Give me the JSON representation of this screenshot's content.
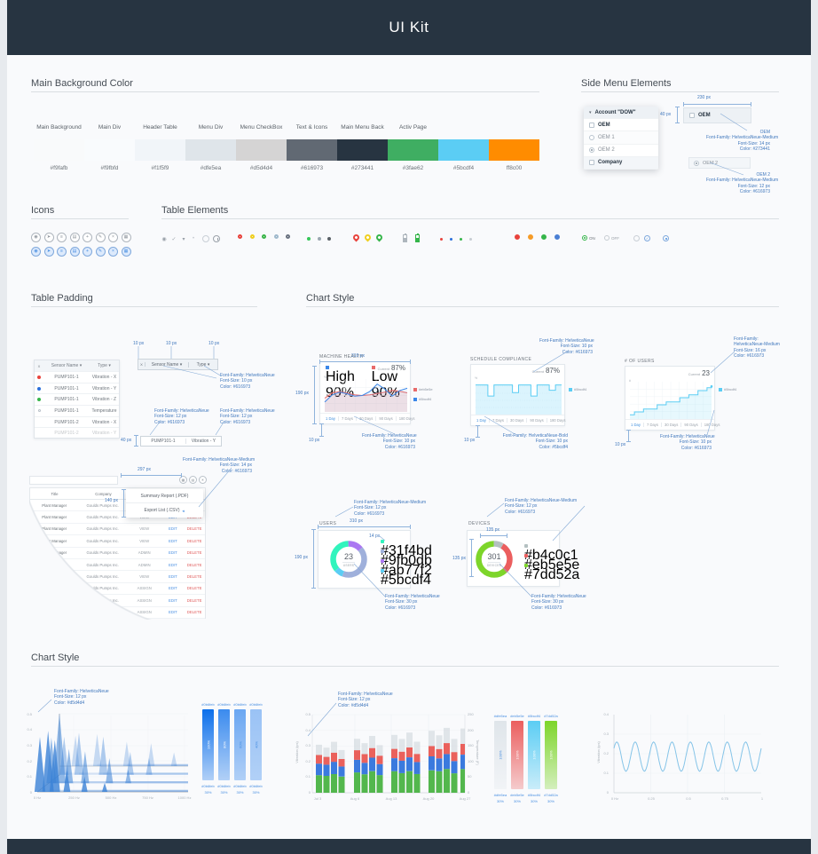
{
  "header": {
    "title": "UI Kit"
  },
  "sections": {
    "main_background_color": "Main Background Color",
    "side_menu_elements": "Side Menu Elements",
    "icons": "Icons",
    "table_elements": "Table Elements",
    "table_padding": "Table Padding",
    "chart_style": "Chart Style",
    "chart_style_2": "Chart Style"
  },
  "palette": {
    "labels": [
      "Main Background",
      "Main Div",
      "Header Table",
      "Menu Div",
      "Menu CheckBox",
      "Text & Icons",
      "Main Menu Back",
      "Activ Page"
    ],
    "swatches": [
      {
        "hex": "#f9fafb",
        "color": "#f9fafb"
      },
      {
        "hex": "#f9fbfd",
        "color": "#f9fbfd"
      },
      {
        "hex": "#f1f5f9",
        "color": "#f1f5f9"
      },
      {
        "hex": "#dfe5ea",
        "color": "#dfe5ea"
      },
      {
        "hex": "#d5d4d4",
        "color": "#d5d4d4"
      },
      {
        "hex": "#616973",
        "color": "#616973"
      },
      {
        "hex": "#273441",
        "color": "#273441"
      },
      {
        "hex": "#3fae62",
        "color": "#3fae62"
      },
      {
        "hex": "#5bcdf4",
        "color": "#5bcdf4"
      },
      {
        "hex": "ff8c00",
        "color": "#ff8c00"
      }
    ]
  },
  "side_menu": {
    "items": [
      {
        "label": "Account \"DOW\"",
        "control": "caret",
        "strong": true,
        "bg": "#edf1f5"
      },
      {
        "label": "OEM",
        "control": "checkbox",
        "strong": true,
        "bg": "#ffffff"
      },
      {
        "label": "OEM 1",
        "control": "circle",
        "strong": false,
        "bg": "#fbfcfd"
      },
      {
        "label": "OEM 2",
        "control": "radio",
        "strong": false,
        "bg": "#ffffff"
      },
      {
        "label": "Company",
        "control": "checkbox",
        "strong": true,
        "bg": "#f3f6f9"
      }
    ],
    "spec_item_1": {
      "label": "OEM",
      "control": "checkbox"
    },
    "spec_item_2": {
      "label": "OEM 2",
      "control": "radio"
    }
  },
  "icons_grid": {
    "names": [
      "pin",
      "send",
      "list",
      "archive",
      "plus",
      "edit",
      "close",
      "grid"
    ],
    "glyphs": [
      "◉",
      "➤",
      "≡",
      "▤",
      "+",
      "✎",
      "×",
      "▦"
    ]
  },
  "table_elements": {
    "on_label": "ON",
    "off_label": "OFF",
    "glyphs": [
      {
        "name": "eye-icon",
        "g": "◉",
        "c": "#9aa1a9"
      },
      {
        "name": "check-icon",
        "g": "✓",
        "c": "#9aa1a9"
      },
      {
        "name": "caret-down-icon",
        "g": "▾",
        "c": "#9aa1a9"
      },
      {
        "name": "dot-icon",
        "g": "•",
        "c": "#c2c8ce"
      }
    ],
    "rings": [
      "#e8423c",
      "#f0cf1f",
      "#3bb54a",
      "#9fb9cc",
      "#6a7280"
    ],
    "dots": [
      "#35c759",
      "#9aa7b0",
      "#596066"
    ],
    "pins": [
      "#e8423c",
      "#f0cf1f",
      "#35b54a"
    ],
    "batteries": [
      "#aeb6bd",
      "#35b54a"
    ],
    "tiny_dots": [
      "#e8423c",
      "#2a6fdb",
      "#35b54a",
      "#c6ccd2"
    ],
    "donuts": [
      "#e8423c",
      "#f59b27",
      "#35b54a",
      "#4a7fd4"
    ]
  },
  "sensor_table": {
    "headers": [
      "X",
      "Sensor Name",
      "Type"
    ],
    "rows": [
      {
        "dot": "#e8423c",
        "name": "PUMP101-1",
        "type": "Vibration - X"
      },
      {
        "dot": "#2a6fdb",
        "name": "PUMP101-1",
        "type": "Vibration - Y"
      },
      {
        "dot": "#35b54a",
        "name": "PUMP101-1",
        "type": "Vibration - Z"
      },
      {
        "dot": "ring",
        "name": "PUMP101-1",
        "type": "Temperature"
      },
      {
        "dot": "",
        "name": "PUMP101-2",
        "type": "Vibration - X"
      },
      {
        "dot": "",
        "name": "PUMP101-2",
        "type": "Vibration - Y"
      }
    ]
  },
  "spec_row_cells": [
    "PUMP101-1",
    "Vibration - Y"
  ],
  "users_table": {
    "headers": [
      "Title",
      "Company",
      "User Rights"
    ],
    "title": "Plant Manager",
    "company": "Goulds Pumps Inc.",
    "rights": [
      "VIEW",
      "VIEW",
      "VIEW",
      "VIEW",
      "ADMIN",
      "ADMIN",
      "VIEW",
      "ASSIGN",
      "ASSIGN",
      "ASSIGN"
    ],
    "edit": "EDIT",
    "delete": "DELETE"
  },
  "export_menu": {
    "items": [
      "Summary Report (.PDF)",
      "Export List (.CSV)"
    ]
  },
  "toolbar_icons": [
    {
      "name": "grid-icon",
      "g": "▦"
    },
    {
      "name": "report-icon",
      "g": "▤"
    },
    {
      "name": "settings-icon",
      "g": "✳"
    }
  ],
  "dim_labels": {
    "d230": "230 px",
    "d40a": "40 px",
    "d40b": "40 px",
    "d297": "297 px",
    "d140": "140 px",
    "d310": "310 px",
    "d190": "190 px",
    "d14": "14 px",
    "d135": "135 px",
    "d10": "10 px"
  },
  "annotations": {
    "oem": [
      "OEM",
      "Font-Family: HelveticaNeue-Medium",
      "Font-Size: 14 px",
      "Color: #273441"
    ],
    "oem2": [
      "OEM 2",
      "Font-Family: HelveticaNeue-Medium",
      "Font-Size: 12 px",
      "Color: #616973"
    ],
    "thead": [
      "Font-Family: HelveticaNeue",
      "Font-Size: 10 px",
      "Color: #616973"
    ],
    "cell": [
      "Font-Family: HelveticaNeue",
      "Font-Size: 12 px",
      "Color: #616973"
    ],
    "export": [
      "Font-Family: HelveticaNeue-Medium",
      "Font-Size: 14 px",
      "Color: #616973"
    ],
    "small10": [
      "Font-Family: HelveticaNeue",
      "Font-Size: 10 px",
      "Color: #616973"
    ],
    "bold10": [
      "Font-Family: HelveticaNeue-Bold",
      "Font-Size: 10 px",
      "Color: #5bcdf4"
    ],
    "medium16": [
      "Font-Family:",
      "HelveticaNeue-Medium",
      "Font-Size: 16 px",
      "Color: #616973"
    ],
    "medium12": [
      "Font-Family: HelveticaNeue-Medium",
      "Font-Size: 12 px",
      "Color: #616973"
    ],
    "num30": [
      "Font-Family: HelveticaNeue",
      "Font-Size: 30 px",
      "Color: #616973"
    ],
    "axis12": [
      "Font-Family: HelveticaNeue",
      "Font-Size: 12 px",
      "Color: #d5d4d4"
    ]
  },
  "chart_data": [
    {
      "id": "machine_health",
      "type": "line",
      "title": "MACHINE HEALTH",
      "unit": "%",
      "legend": [
        {
          "label": "High 90%",
          "color": "#3b87e8"
        },
        {
          "label": "Low 90%",
          "color": "#e86a6a"
        }
      ],
      "current_label": "Current",
      "current_value": "87%",
      "tabs": [
        "1 Day",
        "7 Days",
        "30 Days",
        "90 Days",
        "180 Days"
      ],
      "active_tab": "1 Day",
      "side_legend": [
        {
          "label": "#eb5e5e",
          "color": "#e86a6a"
        },
        {
          "label": "#5bcdf4",
          "color": "#3b87e8"
        }
      ],
      "series": [
        {
          "name": "High",
          "color": "#3b87e8",
          "values": [
            30,
            52,
            60,
            55,
            48,
            50,
            62,
            85,
            70,
            48,
            65,
            72
          ]
        },
        {
          "name": "Low",
          "color": "#e86a6a",
          "values": [
            42,
            58,
            62,
            57,
            52,
            50,
            52,
            56,
            60,
            66,
            63,
            58
          ]
        }
      ],
      "ylim": [
        0,
        100
      ]
    },
    {
      "id": "schedule_compliance",
      "type": "step-area",
      "title": "SCHEDULE COMPLIANCE",
      "unit": "%",
      "current_label": "Current",
      "current_value": "87%",
      "color": "#5bcdf4",
      "tabs": [
        "1 Day",
        "7 Days",
        "30 Days",
        "90 Days",
        "180 Days"
      ],
      "active_tab": "1 Day",
      "side_legend": [
        {
          "label": "#5bcdf4",
          "color": "#5bcdf4"
        }
      ],
      "values": [
        88,
        88,
        55,
        88,
        88,
        88,
        65,
        88,
        88,
        55,
        88,
        88,
        72,
        88,
        88
      ],
      "ylim": [
        0,
        100
      ]
    },
    {
      "id": "num_users",
      "type": "step-line",
      "title": "# OF USERS",
      "unit": "#",
      "current_label": "Current",
      "current_value": "23",
      "color": "#5bcdf4",
      "tabs": [
        "1 Day",
        "7 Days",
        "30 Days",
        "90 Days",
        "180 Days"
      ],
      "active_tab": "1 Day",
      "side_legend": [
        {
          "label": "#5bcdf4",
          "color": "#5bcdf4"
        }
      ],
      "values": [
        3,
        5,
        5,
        7,
        7,
        7,
        10,
        10,
        12,
        12,
        12,
        15,
        15,
        17,
        17,
        20,
        20,
        22,
        23
      ],
      "ylim": [
        0,
        25
      ]
    },
    {
      "id": "users_donut",
      "type": "donut",
      "title": "USERS",
      "center_value": "23",
      "center_label": "USERS",
      "segments": [
        {
          "hex": "#ab77f2",
          "value": 14
        },
        {
          "hex": "#9fb0db",
          "value": 42
        },
        {
          "hex": "#5bcdf4",
          "value": 8
        },
        {
          "hex": "#31f4bd",
          "value": 36
        }
      ],
      "legend": [
        "#31f4bd",
        "#9fb0db",
        "#ab77f2",
        "#5bcdf4"
      ]
    },
    {
      "id": "devices_donut",
      "type": "donut",
      "title": "DEVICES",
      "center_value": "301",
      "center_label": "DEVICES",
      "segments": [
        {
          "hex": "#b4c0c1",
          "value": 9
        },
        {
          "hex": "#eb5e5e",
          "value": 29
        },
        {
          "hex": "#7dd52a",
          "value": 62
        }
      ],
      "legend": [
        "#b4c0c1",
        "#eb5e5e",
        "#7dd52a"
      ]
    },
    {
      "id": "spectrum",
      "type": "waterfall",
      "color": "#3b82d6",
      "ylabels": [
        "0.5",
        "0.4",
        "0.3",
        "0.2",
        "0.1",
        "0"
      ],
      "xlabels": [
        "0 Hz",
        "250 Hz",
        "500 Hz",
        "750 Hz",
        "1000 Hz"
      ],
      "rows": [
        [
          [
            0.02,
            0.72
          ],
          [
            0.08,
            0.8
          ],
          [
            0.13,
            0.68
          ],
          [
            0.22,
            0.28
          ],
          [
            0.35,
            0.2
          ],
          [
            0.5,
            0.12
          ]
        ],
        [
          [
            0.05,
            0.6
          ],
          [
            0.11,
            0.92
          ],
          [
            0.18,
            0.45
          ],
          [
            0.3,
            0.42
          ],
          [
            0.48,
            0.33
          ],
          [
            0.62,
            0.18
          ]
        ],
        [
          [
            0.09,
            0.5
          ],
          [
            0.2,
            0.55
          ],
          [
            0.38,
            0.5
          ],
          [
            0.58,
            0.3
          ],
          [
            0.72,
            0.22
          ]
        ],
        [
          [
            0.12,
            0.4
          ],
          [
            0.28,
            0.42
          ],
          [
            0.5,
            0.32
          ],
          [
            0.68,
            0.3
          ],
          [
            0.85,
            0.18
          ]
        ]
      ]
    },
    {
      "id": "opacity_bars_blue",
      "type": "gradient-bars",
      "bars": [
        {
          "hex": "#0b6feb",
          "label": "100%"
        },
        {
          "hex": "#0b6feb",
          "label": "80%"
        },
        {
          "hex": "#0b6feb",
          "label": "60%"
        },
        {
          "hex": "#0b6feb",
          "label": "40%"
        }
      ],
      "opacities": [
        1,
        0.8,
        0.6,
        0.4
      ],
      "bottom_pct": "30%"
    },
    {
      "id": "vibration_temp",
      "type": "stacked-bars",
      "ylabel_left": "Vibration (ips)",
      "ylabel_right": "Temperature (F)",
      "yleft": [
        "0.5",
        "0.4",
        "0.3",
        "0.2",
        "0.1",
        "0"
      ],
      "yright": [
        "250",
        "200",
        "150",
        "100",
        "50",
        "0"
      ],
      "xlabels": [
        "Jul 3",
        "Aug 6",
        "Aug 13",
        "Aug 20",
        "Aug 27"
      ],
      "colors": [
        "#44b13e",
        "#2a6fdb",
        "#e8544e",
        "#ccd3d9"
      ],
      "clusters": [
        [
          0.115,
          0.075,
          0.055,
          0.065
        ],
        [
          0.13,
          0.08,
          0.06,
          0.075
        ],
        [
          0.135,
          0.085,
          0.06,
          0.09
        ],
        [
          0.145,
          0.09,
          0.065,
          0.095
        ],
        [
          0.15,
          0.09,
          0.07,
          0.1
        ]
      ]
    },
    {
      "id": "palette_bars",
      "type": "gradient-bars",
      "bars": [
        {
          "hex": "#dfe5ea",
          "label": "100%"
        },
        {
          "hex": "#eb5e5e",
          "label": "100%"
        },
        {
          "hex": "#5bcdf4",
          "label": "100%"
        },
        {
          "hex": "#7dd52a",
          "label": "100%"
        }
      ],
      "opacities": [
        1,
        1,
        1,
        1
      ],
      "bottom_pct": "30%"
    },
    {
      "id": "sine_wave",
      "type": "sine",
      "ylabel": "Vibration (ips)",
      "ylabels": [
        "0.4",
        "0.3",
        "0.2",
        "0.1",
        "0"
      ],
      "xlabels": [
        "0 Hz",
        "0.25",
        "0.5",
        "0.75",
        "1"
      ],
      "color": "#85c4e8",
      "mean": 0.185,
      "amplitude": 0.075,
      "cycles": 8,
      "ylim": [
        0,
        0.4
      ]
    }
  ]
}
